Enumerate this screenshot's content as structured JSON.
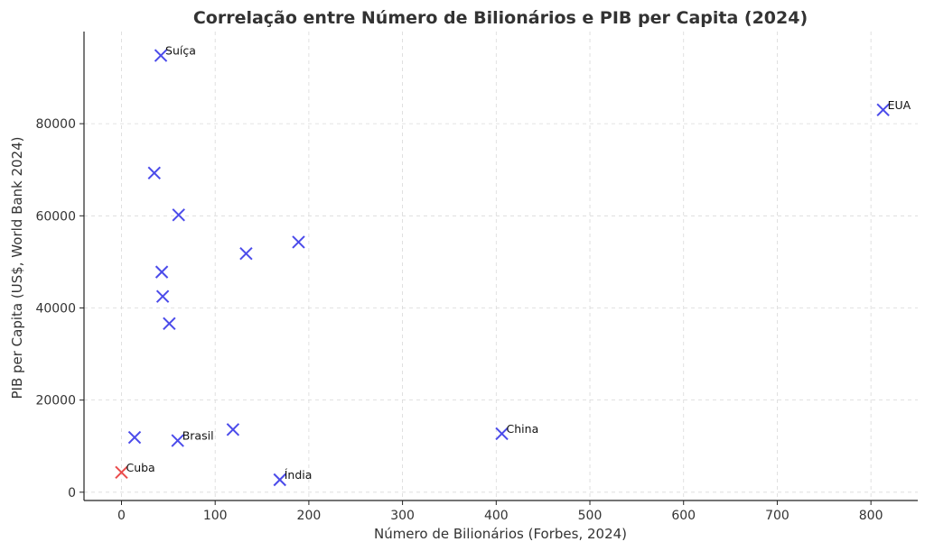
{
  "chart_data": {
    "type": "scatter",
    "title": "Correlação entre Número de Bilionários e PIB per Capita (2024)",
    "xlabel": "Número de Bilionários (Forbes, 2024)",
    "ylabel": "PIB per Capita (US$, World Bank 2024)",
    "xlim": [
      -40,
      850
    ],
    "ylim": [
      -1800,
      100000
    ],
    "xticks": [
      0,
      100,
      200,
      300,
      400,
      500,
      600,
      700,
      800
    ],
    "yticks": [
      0,
      20000,
      40000,
      60000,
      80000
    ],
    "grid": true,
    "colors": {
      "default": "#4b4bea",
      "highlight": "#ea4b4b"
    },
    "points": [
      {
        "x": 813,
        "y": 83000,
        "label": "EUA",
        "color": "default"
      },
      {
        "x": 406,
        "y": 12700,
        "label": "China",
        "color": "default"
      },
      {
        "x": 169,
        "y": 2700,
        "label": "Índia",
        "color": "default"
      },
      {
        "x": 60,
        "y": 11200,
        "label": "Brasil",
        "color": "default"
      },
      {
        "x": 42,
        "y": 94800,
        "label": "Suíça",
        "color": "default"
      },
      {
        "x": 0,
        "y": 4300,
        "label": "Cuba",
        "color": "highlight"
      },
      {
        "x": 35,
        "y": 69300,
        "label": "",
        "color": "default"
      },
      {
        "x": 61,
        "y": 60200,
        "label": "",
        "color": "default"
      },
      {
        "x": 133,
        "y": 51800,
        "label": "",
        "color": "default"
      },
      {
        "x": 189,
        "y": 54300,
        "label": "",
        "color": "default"
      },
      {
        "x": 43,
        "y": 47800,
        "label": "",
        "color": "default"
      },
      {
        "x": 44,
        "y": 42500,
        "label": "",
        "color": "default"
      },
      {
        "x": 51,
        "y": 36600,
        "label": "",
        "color": "default"
      },
      {
        "x": 14,
        "y": 11900,
        "label": "",
        "color": "default"
      },
      {
        "x": 119,
        "y": 13600,
        "label": "",
        "color": "default"
      }
    ]
  }
}
